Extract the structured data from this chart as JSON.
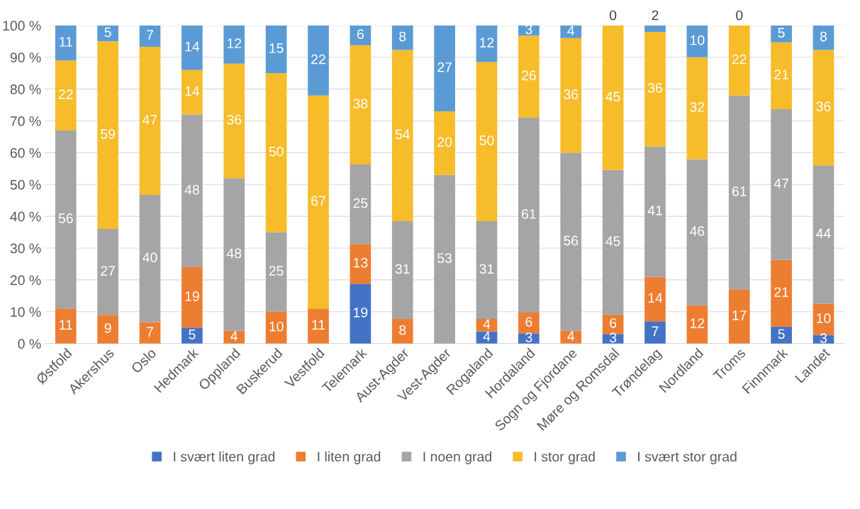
{
  "chart_data": {
    "type": "bar",
    "stacked": true,
    "categories": [
      "Østfold",
      "Akershus",
      "Oslo",
      "Hedmark",
      "Oppland",
      "Buskerud",
      "Vestfold",
      "Telemark",
      "Aust-Agder",
      "Vest-Agder",
      "Rogaland",
      "Hordaland",
      "Sogn og Fjordane",
      "Møre og Romsdal",
      "Trøndelag",
      "Nordland",
      "Troms",
      "Finnmark",
      "Landet"
    ],
    "series": [
      {
        "name": "I svært liten grad",
        "color": "#4472c4",
        "values": [
          0,
          0,
          0,
          5,
          0,
          0,
          0,
          18.8,
          0,
          0,
          3.8,
          3.2,
          0,
          3.0,
          7,
          0,
          0,
          5.3,
          2.7
        ],
        "value_labels": [
          null,
          null,
          null,
          "5",
          null,
          null,
          null,
          "19",
          null,
          null,
          "4",
          "3",
          null,
          "3",
          "7",
          null,
          null,
          "5",
          "3"
        ]
      },
      {
        "name": "I liten grad",
        "color": "#ed7d31",
        "values": [
          11,
          9,
          6.7,
          19,
          4,
          10,
          11,
          12.5,
          7.7,
          0,
          3.9,
          6.5,
          4,
          6.1,
          14,
          12,
          17,
          21,
          9.8
        ],
        "value_labels": [
          "11",
          "9",
          "7",
          "19",
          "4",
          "10",
          "11",
          "13",
          "8",
          null,
          "4",
          "6",
          "4",
          "6",
          "14",
          "12",
          "17",
          "21",
          "10"
        ]
      },
      {
        "name": "I noen grad",
        "color": "#a5a5a5",
        "values": [
          56,
          27,
          40,
          48,
          48,
          25,
          0,
          25,
          30.8,
          53,
          30.8,
          61.3,
          56,
          45.45,
          41,
          46,
          61,
          47.4,
          43.5
        ],
        "value_labels": [
          "56",
          "27",
          "40",
          "48",
          "48",
          "25",
          null,
          "25",
          "31",
          "53",
          "31",
          "61",
          "56",
          "45",
          "41",
          "46",
          "61",
          "47",
          "44"
        ]
      },
      {
        "name": "I stor grad",
        "color": "#f6bc2a",
        "values": [
          22,
          59,
          46.6,
          14,
          36,
          50,
          67,
          37.5,
          53.8,
          20,
          50,
          25.8,
          36,
          45.45,
          36,
          32,
          22,
          21,
          36.3
        ],
        "value_labels": [
          "22",
          "59",
          "47",
          "14",
          "36",
          "50",
          "67",
          "38",
          "54",
          "20",
          "50",
          "26",
          "36",
          "45",
          "36",
          "32",
          "22",
          "21",
          "36"
        ]
      },
      {
        "name": "I svært stor grad",
        "color": "#5b9bd5",
        "values": [
          11,
          5,
          6.7,
          14,
          12,
          15,
          22,
          6.2,
          7.7,
          27,
          11.5,
          3.2,
          4,
          0,
          2,
          10,
          0,
          5.3,
          7.7
        ],
        "value_labels": [
          "11",
          "5",
          "7",
          "14",
          "12",
          "15",
          "22",
          "6",
          "8",
          "27",
          "12",
          "3",
          "4",
          "0",
          "2",
          "10",
          "0",
          "5",
          "8"
        ]
      }
    ],
    "ylim": [
      0,
      100
    ],
    "yticks": [
      {
        "value": 0,
        "label": "0 %"
      },
      {
        "value": 10,
        "label": "10 %"
      },
      {
        "value": 20,
        "label": "20 %"
      },
      {
        "value": 30,
        "label": "30 %"
      },
      {
        "value": 40,
        "label": "40 %"
      },
      {
        "value": 50,
        "label": "50 %"
      },
      {
        "value": 60,
        "label": "60 %"
      },
      {
        "value": 70,
        "label": "70 %"
      },
      {
        "value": 80,
        "label": "80 %"
      },
      {
        "value": 90,
        "label": "90 %"
      },
      {
        "value": 100,
        "label": "100 %"
      }
    ],
    "grid": "y",
    "legend": "bottom"
  }
}
